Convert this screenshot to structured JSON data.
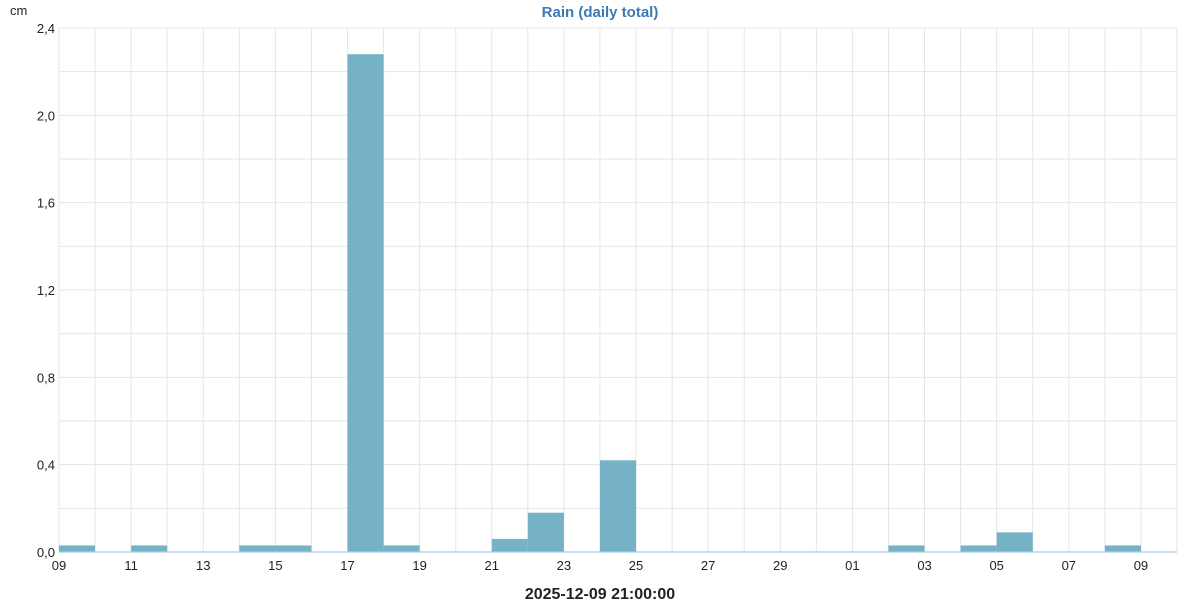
{
  "chart_data": {
    "type": "bar",
    "title": "Rain (daily total)",
    "unit_label": "cm",
    "footer_label": "2025-12-09 21:00:00",
    "x_tick_labels": [
      "09",
      "11",
      "13",
      "15",
      "17",
      "19",
      "21",
      "23",
      "25",
      "27",
      "29",
      "01",
      "03",
      "05",
      "07",
      "09"
    ],
    "y_tick_labels": [
      "0,0",
      "0,4",
      "0,8",
      "1,2",
      "1,6",
      "2,0",
      "2,4"
    ],
    "ylim": [
      0,
      2.4
    ],
    "grid": true,
    "categories": [
      "09",
      "10",
      "11",
      "12",
      "13",
      "14",
      "15",
      "16",
      "17",
      "18",
      "19",
      "20",
      "21",
      "22",
      "23",
      "24",
      "25",
      "26",
      "27",
      "28",
      "29",
      "30",
      "01",
      "02",
      "03",
      "04",
      "05",
      "06",
      "07",
      "08",
      "09"
    ],
    "values": [
      0.03,
      0,
      0.03,
      0,
      0,
      0.03,
      0.03,
      0,
      2.28,
      0.03,
      0,
      0,
      0.06,
      0.18,
      0,
      0.42,
      0,
      0,
      0,
      0,
      0,
      0,
      0,
      0.03,
      0,
      0.03,
      0.09,
      0,
      0,
      0.03,
      0
    ],
    "colors": {
      "bar": "#75b2c6",
      "grid": "#e3e6e8",
      "baseline": "#a8cbe0",
      "title": "#3d7ab6"
    }
  }
}
